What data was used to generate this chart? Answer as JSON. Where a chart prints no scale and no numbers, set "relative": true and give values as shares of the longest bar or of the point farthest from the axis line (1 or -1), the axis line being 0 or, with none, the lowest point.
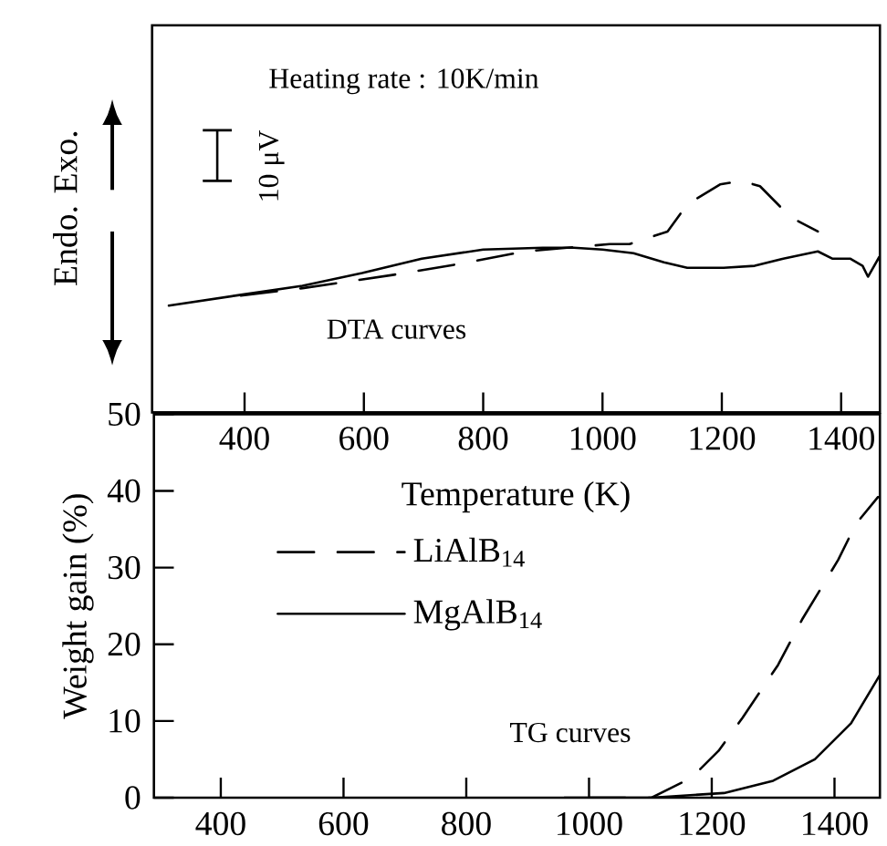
{
  "chart_data": [
    {
      "type": "line",
      "relative": true,
      "xlim": [
        245,
        1465
      ],
      "xticks": [
        400,
        600,
        800,
        1000,
        1200,
        1400
      ],
      "xlabel": "Temperature (K)",
      "ylabel": "Endo. Exo.",
      "annotations": [
        "Heating rate : 10K/min",
        "10 μV",
        "DTA curves"
      ],
      "series": [
        {
          "color": "#000000",
          "line_style": "solid",
          "x": [
            273,
            394,
            497,
            597,
            697,
            800,
            900,
            952,
            1000,
            1052,
            1103,
            1142,
            1203,
            1255,
            1303,
            1361,
            1385,
            1415,
            1436,
            1445,
            1464
          ],
          "values": [
            0,
            0.087,
            0.159,
            0.261,
            0.377,
            0.449,
            0.464,
            0.464,
            0.449,
            0.42,
            0.348,
            0.304,
            0.304,
            0.319,
            0.377,
            0.435,
            0.377,
            0.377,
            0.319,
            0.232,
            0.391
          ]
        },
        {
          "color": "#000000",
          "line_style": "dashed",
          "x": [
            394,
            497,
            648,
            758,
            870,
            1012,
            1045,
            1109,
            1142,
            1197,
            1233,
            1264,
            1315,
            1361
          ],
          "values": [
            0.08,
            0.14,
            0.246,
            0.333,
            0.435,
            0.493,
            0.493,
            0.594,
            0.812,
            0.971,
            1.0,
            0.957,
            0.71,
            0.594
          ]
        }
      ]
    },
    {
      "type": "line",
      "xlim": [
        291,
        1474
      ],
      "xticks": [
        400,
        600,
        800,
        1000,
        1200,
        1400
      ],
      "ylim": [
        0,
        50
      ],
      "yticks": [
        0,
        10,
        20,
        30,
        40,
        50
      ],
      "ylabel": "Weight gain (%)",
      "legend": "left",
      "annotations": [
        "TG curves"
      ],
      "series": [
        {
          "name": "LiAlB$_{14}$",
          "color": "#000000",
          "line_style": "dashed",
          "x": [
            1000,
            1102,
            1167,
            1211,
            1250,
            1308,
            1347,
            1406,
            1435,
            1471
          ],
          "values": [
            0,
            0,
            2.6,
            6.1,
            10.4,
            17.3,
            23.2,
            31,
            35.7,
            39.2
          ]
        },
        {
          "name": "MgAlB$_{14}$",
          "color": "#000000",
          "line_style": "solid",
          "x": [
            960,
            1102,
            1220,
            1300,
            1368,
            1427,
            1474
          ],
          "values": [
            0,
            0,
            0.6,
            2.2,
            5,
            9.7,
            16
          ]
        }
      ]
    }
  ]
}
